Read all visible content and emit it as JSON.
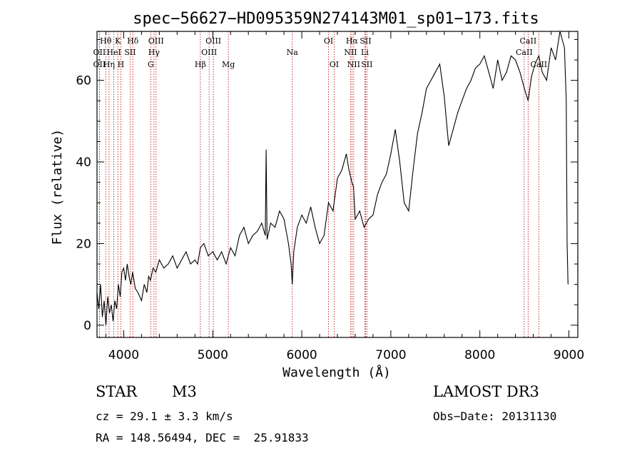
{
  "chart_data": {
    "type": "line",
    "title": "spec−56627−HD095359N274143M01_sp01−173.fits",
    "xlabel": "Wavelength (Å)",
    "ylabel": "Flux (relative)",
    "xlim": [
      3700,
      9100
    ],
    "ylim": [
      -3,
      72
    ],
    "x_ticks": [
      4000,
      5000,
      6000,
      7000,
      8000,
      9000
    ],
    "y_ticks": [
      0,
      20,
      40,
      60
    ],
    "series": [
      {
        "name": "flux",
        "x": [
          3700,
          3720,
          3740,
          3760,
          3780,
          3800,
          3820,
          3840,
          3860,
          3880,
          3900,
          3920,
          3940,
          3960,
          3980,
          4000,
          4020,
          4040,
          4060,
          4080,
          4100,
          4130,
          4160,
          4200,
          4230,
          4260,
          4280,
          4300,
          4330,
          4360,
          4400,
          4450,
          4500,
          4550,
          4600,
          4650,
          4700,
          4750,
          4800,
          4830,
          4861,
          4900,
          4950,
          5000,
          5050,
          5100,
          5150,
          5200,
          5250,
          5300,
          5350,
          5400,
          5450,
          5500,
          5550,
          5590,
          5600,
          5610,
          5650,
          5700,
          5750,
          5800,
          5850,
          5880,
          5893,
          5910,
          5950,
          6000,
          6050,
          6100,
          6150,
          6200,
          6250,
          6300,
          6350,
          6400,
          6450,
          6500,
          6530,
          6563,
          6580,
          6600,
          6650,
          6700,
          6750,
          6800,
          6850,
          6900,
          6950,
          7000,
          7050,
          7100,
          7150,
          7200,
          7250,
          7300,
          7350,
          7400,
          7450,
          7500,
          7550,
          7600,
          7650,
          7700,
          7750,
          7800,
          7850,
          7900,
          7950,
          8000,
          8050,
          8100,
          8150,
          8200,
          8250,
          8300,
          8350,
          8400,
          8450,
          8500,
          8542,
          8580,
          8620,
          8662,
          8700,
          8750,
          8800,
          8850,
          8900,
          8950,
          8970,
          8980,
          8990
        ],
        "values": [
          8,
          4,
          10,
          2,
          6,
          0,
          7,
          3,
          5,
          1,
          6,
          4,
          10,
          7,
          13,
          14,
          11,
          15,
          12,
          10,
          13,
          9,
          8,
          6,
          10,
          8,
          12,
          11,
          14,
          13,
          16,
          14,
          15,
          17,
          14,
          16,
          18,
          15,
          16,
          15,
          19,
          20,
          17,
          18,
          16,
          18,
          15,
          19,
          17,
          22,
          24,
          20,
          22,
          23,
          25,
          22,
          43,
          21,
          25,
          24,
          28,
          26,
          20,
          15,
          10,
          18,
          24,
          27,
          25,
          29,
          24,
          20,
          22,
          30,
          28,
          36,
          38,
          42,
          38,
          35,
          34,
          26,
          28,
          24,
          26,
          27,
          32,
          35,
          37,
          42,
          48,
          40,
          30,
          28,
          38,
          47,
          52,
          58,
          60,
          62,
          64,
          56,
          44,
          48,
          52,
          55,
          58,
          60,
          63,
          64,
          66,
          62,
          58,
          65,
          60,
          62,
          66,
          65,
          62,
          58,
          55,
          61,
          64,
          66,
          62,
          60,
          68,
          65,
          72,
          68,
          55,
          20,
          10
        ]
      }
    ],
    "spectral_lines": [
      {
        "label": "Hθ",
        "x": 3798,
        "row": 1
      },
      {
        "label": "OII",
        "x": 3727,
        "row": 2
      },
      {
        "label": "OII",
        "x": 3727,
        "row": 3
      },
      {
        "label": "K",
        "x": 3934,
        "row": 1
      },
      {
        "label": "HeI",
        "x": 3889,
        "row": 2
      },
      {
        "label": "Hη",
        "x": 3835,
        "row": 3
      },
      {
        "label": "SII",
        "x": 4072,
        "row": 2
      },
      {
        "label": "H",
        "x": 3968,
        "row": 3
      },
      {
        "label": "Hδ",
        "x": 4102,
        "row": 1
      },
      {
        "label": "OIII",
        "x": 4363,
        "row": 1
      },
      {
        "label": "Hγ",
        "x": 4340,
        "row": 2
      },
      {
        "label": "G",
        "x": 4304,
        "row": 3
      },
      {
        "label": "Hβ",
        "x": 4861,
        "row": 3
      },
      {
        "label": "OIII",
        "x": 5007,
        "row": 1
      },
      {
        "label": "OIII",
        "x": 4959,
        "row": 2
      },
      {
        "label": "Mg",
        "x": 5175,
        "row": 3
      },
      {
        "label": "Na",
        "x": 5893,
        "row": 2
      },
      {
        "label": "OI",
        "x": 6300,
        "row": 1
      },
      {
        "label": "OI",
        "x": 6363,
        "row": 3
      },
      {
        "label": "Hα",
        "x": 6563,
        "row": 1
      },
      {
        "label": "SII",
        "x": 6716,
        "row": 1
      },
      {
        "label": "NII",
        "x": 6548,
        "row": 2
      },
      {
        "label": "Li",
        "x": 6708,
        "row": 2
      },
      {
        "label": "NII",
        "x": 6583,
        "row": 3
      },
      {
        "label": "SII",
        "x": 6731,
        "row": 3
      },
      {
        "label": "CaII",
        "x": 8542,
        "row": 1
      },
      {
        "label": "CaII",
        "x": 8498,
        "row": 2
      },
      {
        "label": "CaII",
        "x": 8662,
        "row": 3
      }
    ]
  },
  "info": {
    "object_class": "STAR",
    "subclass": "M3",
    "survey": "LAMOST DR3",
    "cz": "cz = 29.1 ± 3.3 km/s",
    "obs_date": "Obs−Date: 20131130",
    "coords": "RA = 148.56494, DEC =  25.91833"
  },
  "colors": {
    "line_marker": "#c00000",
    "spectrum": "#000000"
  }
}
